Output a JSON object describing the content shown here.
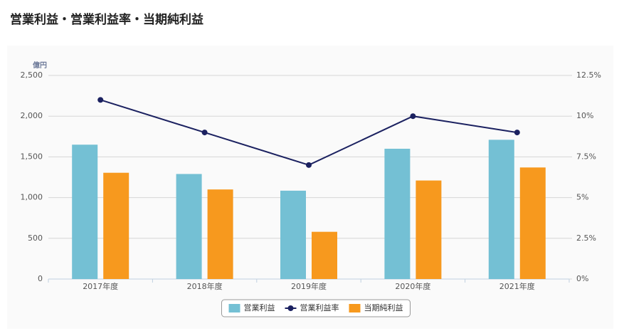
{
  "chart_data": {
    "type": "bar",
    "title": "営業利益・営業利益率・当期純利益",
    "y_unit": "億円",
    "categories": [
      "2017年度",
      "2018年度",
      "2019年度",
      "2020年度",
      "2021年度"
    ],
    "series": [
      {
        "name": "営業利益",
        "type": "bar",
        "color": "#74c0d4",
        "values": [
          1650,
          1290,
          1085,
          1600,
          1710
        ]
      },
      {
        "name": "営業利益率",
        "type": "line",
        "axis": "y2",
        "color": "#1b2160",
        "values": [
          11.0,
          9.0,
          7.0,
          10.0,
          9.0
        ]
      },
      {
        "name": "当期純利益",
        "type": "bar",
        "color": "#f7991e",
        "values": [
          1305,
          1100,
          580,
          1210,
          1370
        ]
      }
    ],
    "ylim": [
      0,
      2500
    ],
    "yticks": [
      0,
      500,
      {
        "value": 1000,
        "label": "1,000"
      },
      {
        "value": 1500,
        "label": "1,500"
      },
      {
        "value": 2000,
        "label": "2,000"
      },
      {
        "value": 2500,
        "label": "2,500"
      }
    ],
    "y2lim": [
      0,
      12.5
    ],
    "y2ticks": [
      {
        "value": 0,
        "label": "0%"
      },
      {
        "value": 2.5,
        "label": "2.5%"
      },
      {
        "value": 5,
        "label": "5%"
      },
      {
        "value": 7.5,
        "label": "7.5%"
      },
      {
        "value": 10,
        "label": "10%"
      },
      {
        "value": 12.5,
        "label": "12.5%"
      }
    ],
    "grid": true,
    "legend": "bottom"
  }
}
